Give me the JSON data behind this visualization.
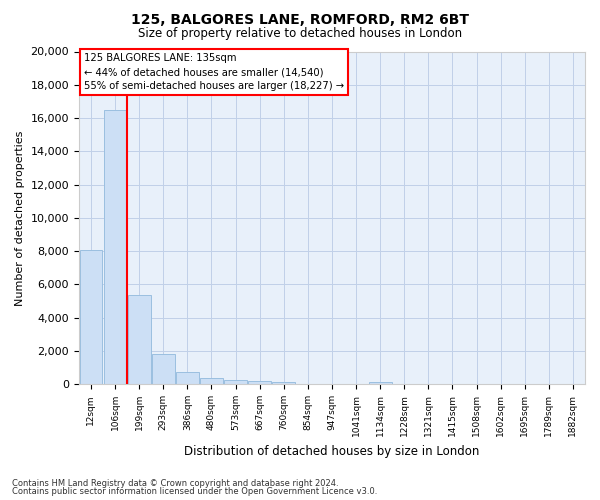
{
  "title": "125, BALGORES LANE, ROMFORD, RM2 6BT",
  "subtitle": "Size of property relative to detached houses in London",
  "xlabel": "Distribution of detached houses by size in London",
  "ylabel": "Number of detached properties",
  "bar_color": "#ccdff5",
  "bar_edge_color": "#9bbfe0",
  "grid_color": "#c0d0e8",
  "background_color": "#e8f0fa",
  "categories": [
    "12sqm",
    "106sqm",
    "199sqm",
    "293sqm",
    "386sqm",
    "480sqm",
    "573sqm",
    "667sqm",
    "760sqm",
    "854sqm",
    "947sqm",
    "1041sqm",
    "1134sqm",
    "1228sqm",
    "1321sqm",
    "1415sqm",
    "1508sqm",
    "1602sqm",
    "1695sqm",
    "1789sqm",
    "1882sqm"
  ],
  "values": [
    8100,
    16500,
    5350,
    1850,
    750,
    350,
    230,
    170,
    130,
    0,
    0,
    0,
    130,
    0,
    0,
    0,
    0,
    0,
    0,
    0,
    0
  ],
  "ylim": [
    0,
    20000
  ],
  "yticks": [
    0,
    2000,
    4000,
    6000,
    8000,
    10000,
    12000,
    14000,
    16000,
    18000,
    20000
  ],
  "red_line_x": 1.5,
  "annotation_title": "125 BALGORES LANE: 135sqm",
  "annotation_line1": "← 44% of detached houses are smaller (14,540)",
  "annotation_line2": "55% of semi-detached houses are larger (18,227) →",
  "footnote1": "Contains HM Land Registry data © Crown copyright and database right 2024.",
  "footnote2": "Contains public sector information licensed under the Open Government Licence v3.0."
}
